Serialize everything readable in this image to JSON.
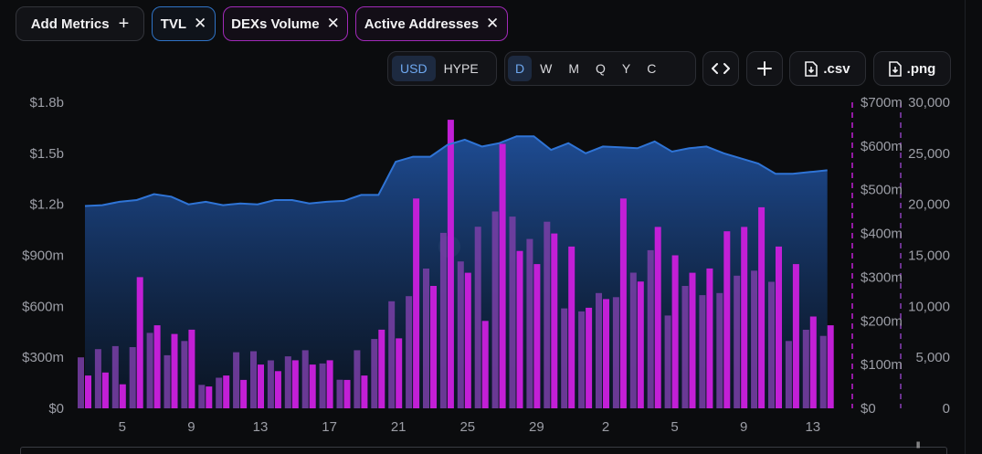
{
  "toolbar": {
    "add_metrics": "Add Metrics",
    "add_icon": "+",
    "metric_chips": [
      {
        "label": "TVL",
        "color": "#2f73c6"
      },
      {
        "label": "DEXs Volume",
        "color": "#a12ab8"
      },
      {
        "label": "Active Addresses",
        "color": "#a12ab8"
      }
    ],
    "currency_options": [
      "USD",
      "HYPE"
    ],
    "currency_selected": "USD",
    "interval_options": [
      "D",
      "W",
      "M",
      "Q",
      "Y",
      "C"
    ],
    "interval_selected": "D",
    "embed_icon": "code-icon",
    "add_chart_icon": "plus-icon",
    "csv_label": ".csv",
    "png_label": ".png"
  },
  "chart_data": {
    "type": "bar",
    "x_tick_labels": [
      "5",
      "9",
      "13",
      "17",
      "21",
      "25",
      "29",
      "2",
      "5",
      "9",
      "13"
    ],
    "y_left_ticks": [
      "$0",
      "$300m",
      "$600m",
      "$900m",
      "$1.2b",
      "$1.5b",
      "$1.8b"
    ],
    "y_mid_ticks": [
      "$0",
      "$100m",
      "$200m",
      "$300m",
      "$400m",
      "$500m",
      "$600m",
      "$700m"
    ],
    "y_right_ticks": [
      "0",
      "5,000",
      "10,000",
      "15,000",
      "20,000",
      "25,000",
      "30,000"
    ],
    "y_left_range": [
      0,
      1800
    ],
    "y_mid_range": [
      0,
      700
    ],
    "y_right_range": [
      0,
      30000
    ],
    "colors": {
      "tvl": "#2f6fd0",
      "dex": "#c21fd6",
      "active": "#7a3fa8"
    },
    "series": [
      {
        "key": "tvl",
        "axis": "left_millions",
        "values": [
          1190,
          1195,
          1215,
          1225,
          1260,
          1245,
          1200,
          1215,
          1195,
          1205,
          1200,
          1225,
          1225,
          1205,
          1215,
          1220,
          1255,
          1255,
          1450,
          1480,
          1480,
          1550,
          1580,
          1540,
          1560,
          1600,
          1600,
          1520,
          1560,
          1500,
          1540,
          1535,
          1530,
          1570,
          1510,
          1530,
          1540,
          1500,
          1470,
          1440,
          1380,
          1380,
          1390,
          1400
        ]
      },
      {
        "key": "dex",
        "axis": "mid_millions",
        "values": [
          75,
          82,
          55,
          300,
          190,
          170,
          180,
          50,
          75,
          65,
          100,
          85,
          110,
          100,
          110,
          65,
          75,
          180,
          160,
          480,
          280,
          660,
          310,
          200,
          605,
          360,
          330,
          400,
          370,
          230,
          250,
          480,
          290,
          415,
          350,
          310,
          320,
          405,
          415,
          460,
          370,
          330,
          210,
          190
        ]
      },
      {
        "key": "active",
        "axis": "right_count",
        "values": [
          5000,
          5800,
          6100,
          6000,
          7400,
          5200,
          6600,
          2300,
          3000,
          5500,
          5600,
          4700,
          5100,
          5700,
          4400,
          2800,
          5700,
          6800,
          10500,
          11000,
          13700,
          17200,
          14400,
          17800,
          19300,
          18800,
          16600,
          18300,
          9800,
          9500,
          11300,
          10900,
          13300,
          15500,
          9100,
          12000,
          11100,
          11300,
          13000,
          13500,
          12400,
          6600,
          7700,
          7100
        ]
      }
    ]
  }
}
